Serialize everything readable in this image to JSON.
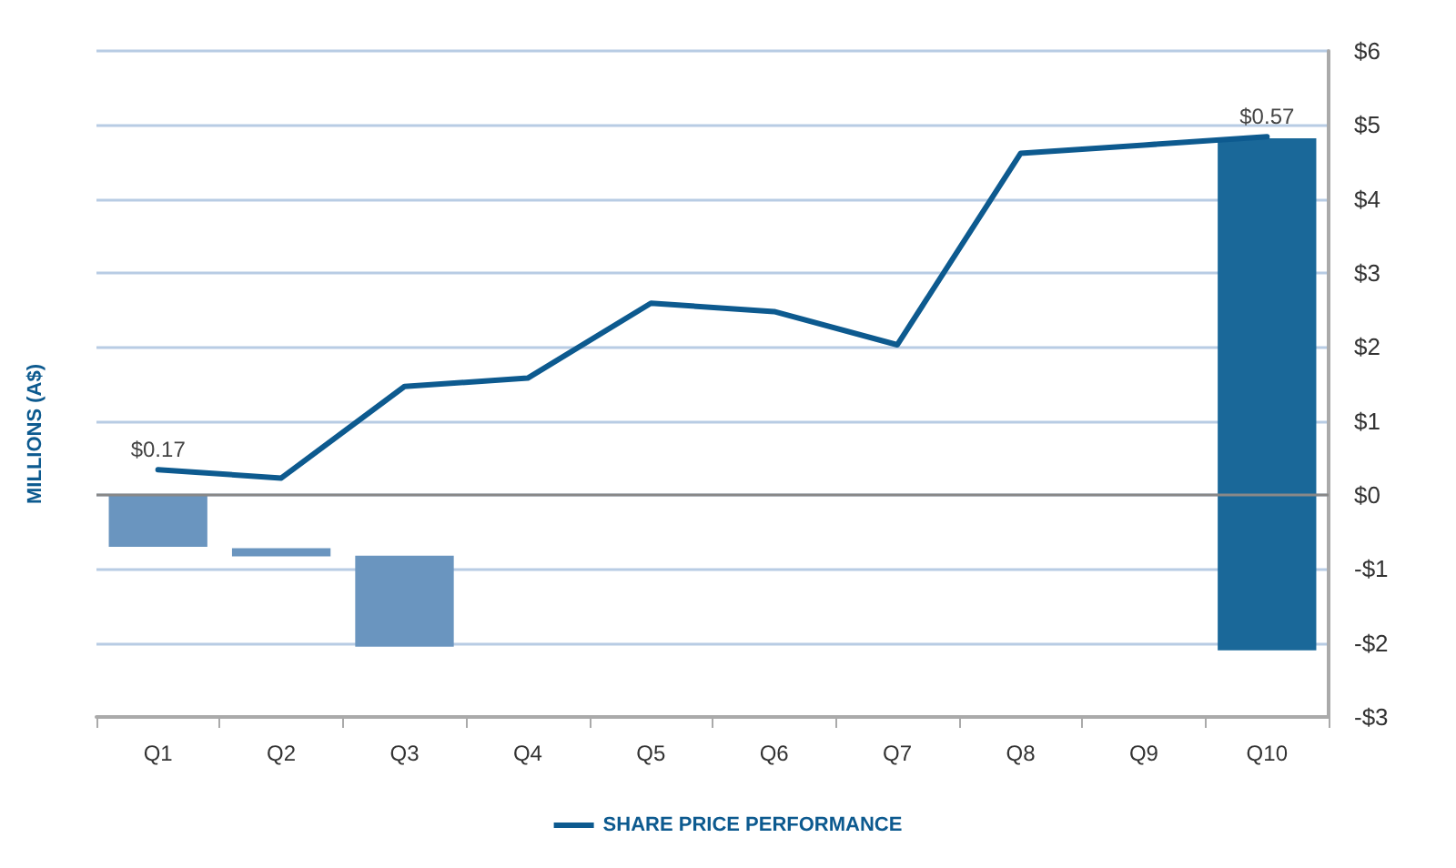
{
  "chart_data": {
    "type": "bar",
    "ylabel": "MILLIONS (A$)",
    "categories": [
      "Q1",
      "Q2",
      "Q3",
      "Q4",
      "Q5",
      "Q6",
      "Q7",
      "Q8",
      "Q9",
      "Q10"
    ],
    "series": [
      {
        "values": [
          -0.7,
          -0.11,
          -1.23,
          null,
          null,
          null,
          null,
          null,
          null,
          6.92
        ],
        "base": [
          0,
          -0.72,
          -0.82,
          null,
          null,
          null,
          null,
          null,
          null,
          -2.1
        ],
        "colors": [
          "#6a95bf",
          "#6a95bf",
          "#6a95bf",
          null,
          null,
          null,
          null,
          null,
          null,
          "#1a6899"
        ]
      },
      {
        "type": "line",
        "axis": "y2",
        "name": "SHARE PRICE PERFORMANCE",
        "color": "#0d5a8f",
        "values": [
          0.17,
          0.16,
          0.27,
          0.28,
          0.37,
          0.36,
          0.32,
          0.55,
          0.56,
          0.57
        ],
        "value_labels": [
          "$0.17",
          null,
          null,
          null,
          null,
          null,
          null,
          null,
          null,
          "$0.57"
        ]
      }
    ],
    "ylim": [
      -3,
      6
    ],
    "yticks": [
      {
        "value": -3,
        "label": "-$3"
      },
      {
        "value": -2,
        "label": "-$2"
      },
      {
        "value": -1,
        "label": "-$1"
      },
      {
        "value": 0,
        "label": "$0"
      },
      {
        "value": 1,
        "label": "$1"
      },
      {
        "value": 2,
        "label": "$2"
      },
      {
        "value": 3,
        "label": "$3"
      },
      {
        "value": 4,
        "label": "$4"
      },
      {
        "value": 5,
        "label": "$5"
      },
      {
        "value": 6,
        "label": "$6"
      }
    ],
    "y2lim": [
      -0.127,
      0.673
    ],
    "grid": "y",
    "legend": "bottom",
    "marker": "none",
    "line_style": "solid"
  }
}
